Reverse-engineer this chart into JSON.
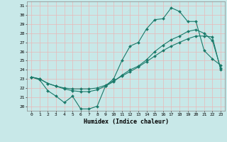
{
  "xlabel": "Humidex (Indice chaleur)",
  "bg_color": "#c8e8e8",
  "grid_color": "#e8b8b8",
  "line_color": "#1a7a6a",
  "ylim": [
    19.5,
    31.5
  ],
  "xlim": [
    -0.5,
    23.5
  ],
  "yticks": [
    20,
    21,
    22,
    23,
    24,
    25,
    26,
    27,
    28,
    29,
    30,
    31
  ],
  "xticks": [
    0,
    1,
    2,
    3,
    4,
    5,
    6,
    7,
    8,
    9,
    10,
    11,
    12,
    13,
    14,
    15,
    16,
    17,
    18,
    19,
    20,
    21,
    22,
    23
  ],
  "line1_y": [
    23.2,
    22.9,
    21.7,
    21.1,
    20.4,
    21.1,
    19.7,
    19.7,
    20.0,
    22.2,
    23.0,
    25.0,
    26.6,
    27.0,
    28.5,
    29.5,
    29.6,
    30.8,
    30.4,
    29.3,
    29.3,
    26.1,
    25.2,
    24.5
  ],
  "line2_y": [
    23.2,
    23.0,
    22.5,
    22.2,
    21.9,
    21.7,
    21.6,
    21.6,
    21.8,
    22.2,
    22.7,
    23.4,
    24.0,
    24.4,
    25.1,
    26.0,
    26.7,
    27.3,
    27.7,
    28.2,
    28.4,
    28.0,
    27.2,
    24.2
  ],
  "line3_y": [
    23.2,
    23.0,
    22.5,
    22.2,
    22.0,
    21.9,
    21.9,
    21.9,
    22.0,
    22.3,
    22.8,
    23.3,
    23.8,
    24.3,
    24.9,
    25.5,
    26.1,
    26.6,
    27.0,
    27.4,
    27.7,
    27.7,
    27.6,
    24.0
  ]
}
